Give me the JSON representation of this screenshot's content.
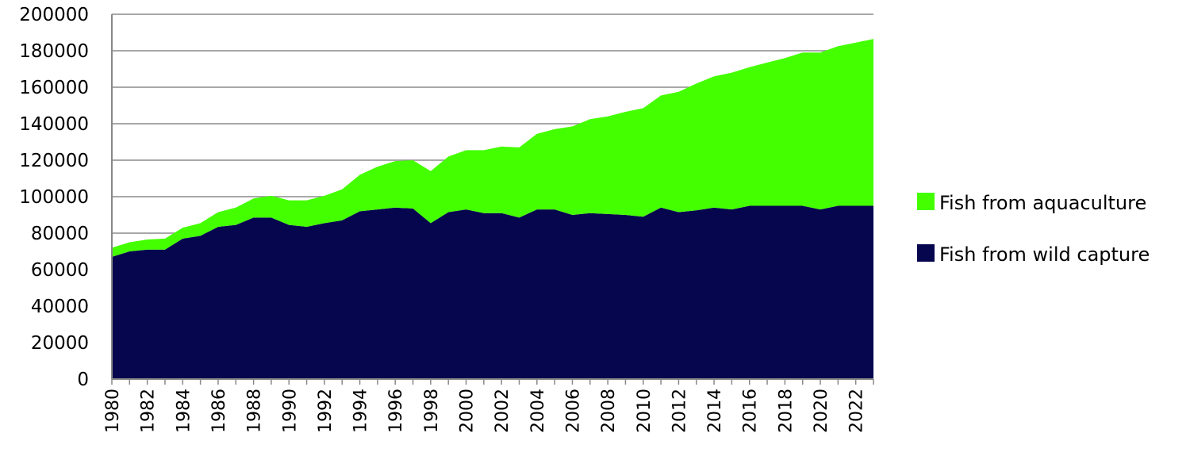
{
  "chart_data": {
    "type": "area",
    "stacked": true,
    "x": [
      1980,
      1981,
      1982,
      1983,
      1984,
      1985,
      1986,
      1987,
      1988,
      1989,
      1990,
      1991,
      1992,
      1993,
      1994,
      1995,
      1996,
      1997,
      1998,
      1999,
      2000,
      2001,
      2002,
      2003,
      2004,
      2005,
      2006,
      2007,
      2008,
      2009,
      2010,
      2011,
      2012,
      2013,
      2014,
      2015,
      2016,
      2017,
      2018,
      2019,
      2020,
      2021,
      2022,
      2023
    ],
    "x_tick_labels": [
      "1980",
      "1982",
      "1984",
      "1986",
      "1988",
      "1990",
      "1992",
      "1994",
      "1996",
      "1998",
      "2000",
      "2002",
      "2004",
      "2006",
      "2008",
      "2010",
      "2012",
      "2014",
      "2016",
      "2018",
      "2020",
      "2022"
    ],
    "y_tick_labels": [
      "0",
      "20000",
      "40000",
      "60000",
      "80000",
      "100000",
      "120000",
      "140000",
      "160000",
      "180000",
      "200000"
    ],
    "ylim": [
      0,
      200000
    ],
    "grid": true,
    "legend_position": "right",
    "series": [
      {
        "name": "Fish from wild capture",
        "color": "#06064f",
        "values": [
          67000,
          70000,
          71000,
          71000,
          77000,
          78500,
          83500,
          84500,
          88500,
          88500,
          84500,
          83500,
          85500,
          87000,
          92000,
          93000,
          94000,
          93500,
          85500,
          91500,
          93000,
          91000,
          91000,
          88500,
          93000,
          93000,
          90000,
          91000,
          90500,
          90000,
          89000,
          94000,
          91500,
          92500,
          94000,
          93000,
          95000,
          95000,
          95000,
          95000,
          93000,
          95000,
          95000,
          95000
        ]
      },
      {
        "name": "Fish from aquaculture",
        "color": "#44ff00",
        "values": [
          5000,
          5000,
          5500,
          6000,
          6000,
          7000,
          8000,
          9500,
          10500,
          12000,
          13500,
          14500,
          15000,
          17000,
          20000,
          23500,
          25500,
          26500,
          28500,
          30500,
          32500,
          34500,
          36500,
          38500,
          41500,
          44000,
          48500,
          51500,
          53500,
          56500,
          59500,
          61500,
          66000,
          69500,
          72000,
          75000,
          76000,
          78500,
          81000,
          84000,
          86000,
          87500,
          89500,
          91500
        ]
      }
    ],
    "legend_order": [
      "Fish from aquaculture",
      "Fish from wild capture"
    ]
  }
}
